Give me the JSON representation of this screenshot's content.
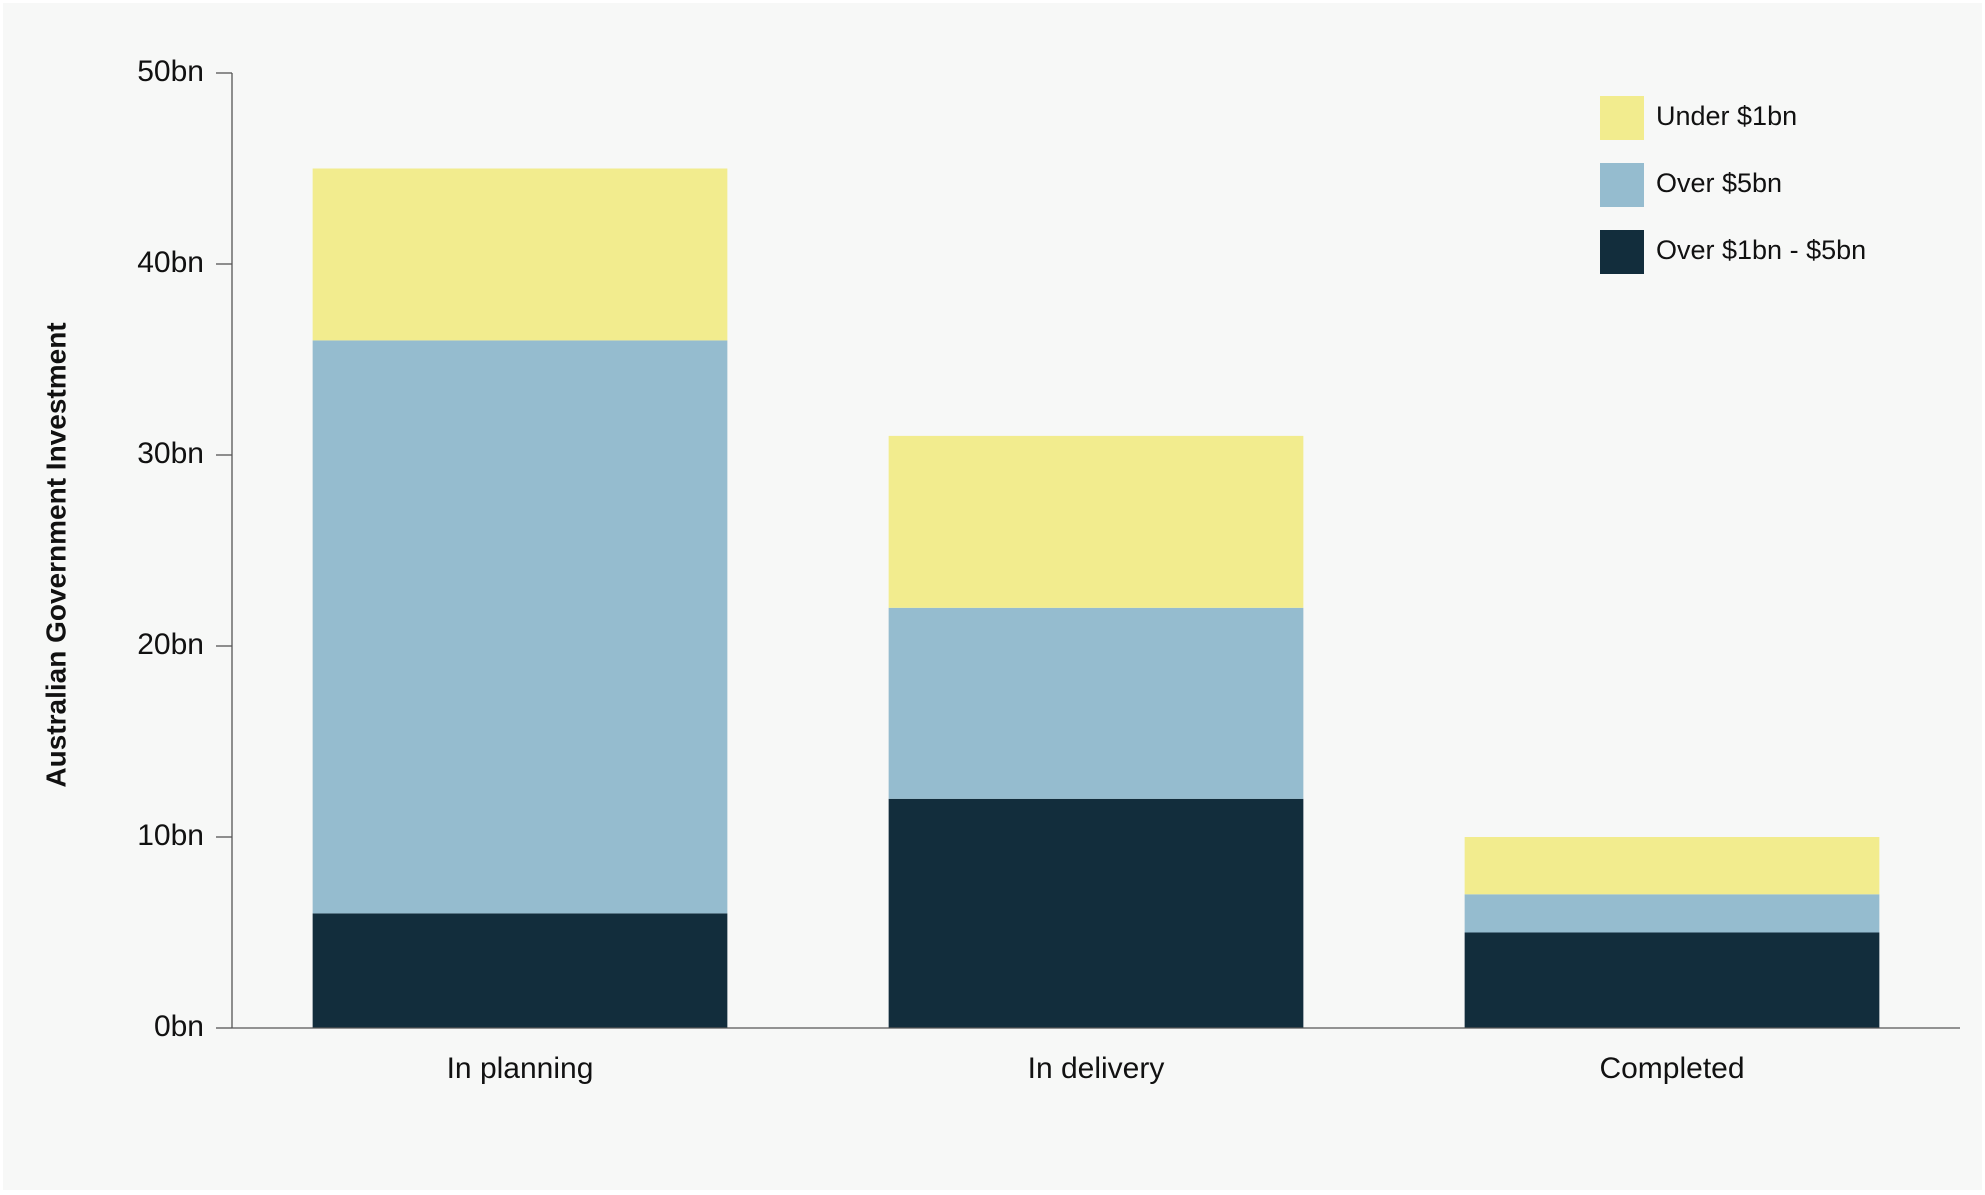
{
  "chart_data": {
    "type": "stacked-bar",
    "y_label": "Australian Government Investment",
    "categories": [
      "In planning",
      "In delivery",
      "Completed"
    ],
    "series": [
      {
        "name": "Over $1bn - $5bn",
        "color": "#122d3c",
        "values": [
          6,
          12,
          5
        ]
      },
      {
        "name": "Over $5bn",
        "color": "#95bccf",
        "values": [
          30,
          10,
          2
        ]
      },
      {
        "name": "Under $1bn",
        "color": "#f2ec8e",
        "values": [
          9,
          9,
          3
        ]
      }
    ],
    "ylim": [
      0,
      50
    ],
    "yticks": [
      {
        "value": 0,
        "label": "0bn"
      },
      {
        "value": 10,
        "label": "10bn"
      },
      {
        "value": 20,
        "label": "20bn"
      },
      {
        "value": 30,
        "label": "30bn"
      },
      {
        "value": 40,
        "label": "40bn"
      },
      {
        "value": 50,
        "label": "50bn"
      }
    ],
    "grid": false,
    "legend": "top-right"
  }
}
